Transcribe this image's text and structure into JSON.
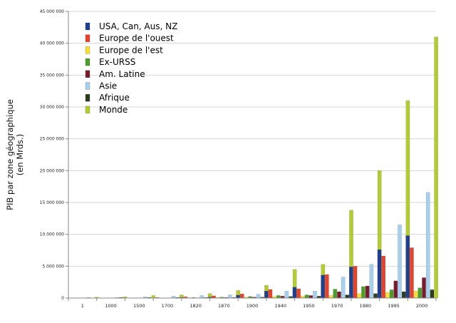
{
  "chart_data": {
    "type": "bar",
    "title": "",
    "xlabel": "",
    "ylabel": "PIB par zone géographique (en Mrds.)",
    "ylabel_lines": [
      "PIB par zone géographique",
      "(en Mrds.)"
    ],
    "ylim": [
      0,
      45000000
    ],
    "yticks": [
      0,
      5000000,
      10000000,
      15000000,
      20000000,
      25000000,
      30000000,
      35000000,
      40000000,
      45000000
    ],
    "ytick_labels": [
      "0",
      "5 000 000",
      "10 000 000",
      "15 000 000",
      "20 000 000",
      "25 000 000",
      "30 000 000",
      "35 000 000",
      "40 000 000",
      "45 000 000"
    ],
    "grid": true,
    "legend_position": "top-left",
    "categories": [
      "1",
      "1000",
      "1500",
      "1700",
      "1820",
      "1870",
      "1900",
      "1940",
      "1950",
      "1970",
      "1980",
      "1995",
      "2000"
    ],
    "series": [
      {
        "name": "USA, Can, Aus, NZ",
        "color": "#1f3f8f",
        "values": [
          0,
          0,
          0,
          0,
          100000,
          150000,
          450000,
          1100000,
          1700000,
          3600000,
          4900000,
          7600000,
          9800000
        ]
      },
      {
        "name": "Europe de l'ouest",
        "color": "#e8432a",
        "values": [
          0,
          0,
          0,
          100000,
          200000,
          350000,
          650000,
          1350000,
          1450000,
          3700000,
          5000000,
          6600000,
          7900000
        ]
      },
      {
        "name": "Europe de l'est",
        "color": "#f7e03a",
        "values": [
          0,
          0,
          0,
          0,
          50000,
          100000,
          150000,
          250000,
          300000,
          400000,
          700000,
          900000,
          1100000
        ]
      },
      {
        "name": "Ex-URSS",
        "color": "#4a9e2a",
        "values": [
          0,
          0,
          0,
          0,
          100000,
          150000,
          250000,
          400000,
          500000,
          1400000,
          1800000,
          1300000,
          1600000
        ]
      },
      {
        "name": "Am. Latine",
        "color": "#7a1a2e",
        "values": [
          0,
          0,
          0,
          0,
          50000,
          100000,
          150000,
          300000,
          400000,
          1000000,
          1900000,
          2700000,
          3200000
        ]
      },
      {
        "name": "Asie",
        "color": "#a6d0ee",
        "values": [
          100000,
          100000,
          200000,
          300000,
          400000,
          500000,
          600000,
          1100000,
          1100000,
          3300000,
          5300000,
          11500000,
          16600000
        ]
      },
      {
        "name": "Afrique",
        "color": "#2c3e1e",
        "values": [
          0,
          100000,
          100000,
          100000,
          100000,
          100000,
          150000,
          250000,
          300000,
          500000,
          700000,
          1000000,
          1300000
        ]
      },
      {
        "name": "Monde",
        "color": "#b5cc30",
        "values": [
          150000,
          200000,
          400000,
          500000,
          700000,
          1200000,
          2000000,
          4500000,
          5300000,
          13800000,
          20000000,
          31000000,
          41000000
        ]
      }
    ]
  }
}
